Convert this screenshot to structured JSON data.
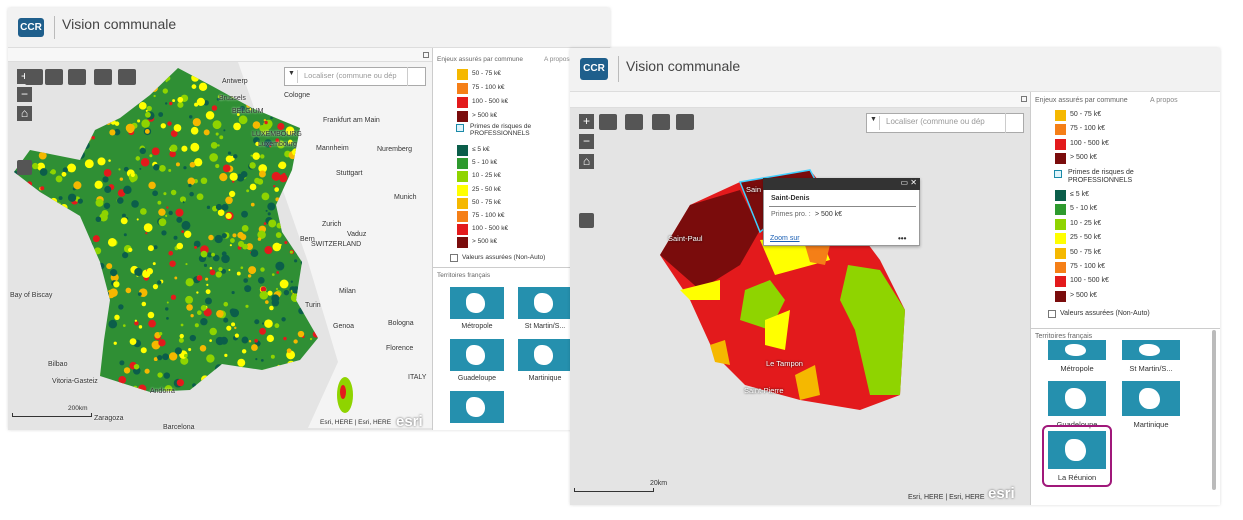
{
  "windows": [
    {
      "logo": "CCR",
      "title": "Vision communale",
      "search": "Localiser (commune ou dép",
      "legend": {
        "header": "Enjeux assurés par commune",
        "about": "A propos",
        "items": [
          {
            "label": "50 - 75 k€",
            "color": "#f5b800"
          },
          {
            "label": "75 - 100 k€",
            "color": "#f57f17"
          },
          {
            "label": "100 - 500 k€",
            "color": "#e31a1c"
          },
          {
            "label": "> 500 k€",
            "color": "#7a0c0c"
          }
        ],
        "layer": "Primes de risques de PROFESSIONNELS",
        "layer_items": [
          {
            "label": "≤ 5 k€",
            "color": "#0b5e4a"
          },
          {
            "label": "5 - 10 k€",
            "color": "#2e9a2e"
          },
          {
            "label": "10 - 25 k€",
            "color": "#8fd400"
          },
          {
            "label": "25 - 50 k€",
            "color": "#ffff00"
          },
          {
            "label": "50 - 75 k€",
            "color": "#f5b800"
          },
          {
            "label": "75 - 100 k€",
            "color": "#f57f17"
          },
          {
            "label": "100 - 500 k€",
            "color": "#e31a1c"
          },
          {
            "label": "> 500 k€",
            "color": "#7a0c0c"
          }
        ],
        "other_layer": "Valeurs assurées (Non-Auto)"
      },
      "territories": {
        "title": "Territoires français",
        "items": [
          "Métropole",
          "St Martin/S...",
          "Guadeloupe",
          "Martinique"
        ]
      },
      "map_labels": [
        "Antwerp",
        "Brussels",
        "BELGIUM",
        "Cologne",
        "Frankfurt am Main",
        "LUXEMBOURG",
        "Luxembourg",
        "Mannheim",
        "Nuremberg",
        "Stuttgart",
        "Munich",
        "Zurich",
        "Vaduz",
        "Bern",
        "SWITZERLAND",
        "Milan",
        "Turin",
        "Genoa",
        "Bologna",
        "Florence",
        "ITALY",
        "Bay of Biscay",
        "Bilbao",
        "Vitoria-Gasteiz",
        "Andorra",
        "Zaragoza",
        "Barcelona"
      ],
      "scale": "200km",
      "attribution": "Esri, HERE | Esri, HERE",
      "brand": "esri"
    },
    {
      "logo": "CCR",
      "title": "Vision communale",
      "search": "Localiser (commune ou dép",
      "legend": {
        "header": "Enjeux assurés par commune",
        "about": "A propos",
        "items": [
          {
            "label": "50 - 75 k€",
            "color": "#f5b800"
          },
          {
            "label": "75 - 100 k€",
            "color": "#f57f17"
          },
          {
            "label": "100 - 500 k€",
            "color": "#e31a1c"
          },
          {
            "label": "> 500 k€",
            "color": "#7a0c0c"
          }
        ],
        "layer": "Primes de risques de PROFESSIONNELS",
        "layer_items": [
          {
            "label": "≤ 5 k€",
            "color": "#0b5e4a"
          },
          {
            "label": "5 - 10 k€",
            "color": "#2e9a2e"
          },
          {
            "label": "10 - 25 k€",
            "color": "#8fd400"
          },
          {
            "label": "25 - 50 k€",
            "color": "#ffff00"
          },
          {
            "label": "50 - 75 k€",
            "color": "#f5b800"
          },
          {
            "label": "75 - 100 k€",
            "color": "#f57f17"
          },
          {
            "label": "100 - 500 k€",
            "color": "#e31a1c"
          },
          {
            "label": "> 500 k€",
            "color": "#7a0c0c"
          }
        ],
        "other_layer": "Valeurs assurées (Non-Auto)"
      },
      "territories": {
        "title": "Territoires français",
        "items": [
          "Métropole",
          "St Martin/S...",
          "Guadeloupe",
          "Martinique",
          "La Réunion"
        ]
      },
      "map_labels": [
        "Sain",
        "Saint-Paul",
        "Le Tampon",
        "Saint-Pierre"
      ],
      "popup": {
        "title": "Saint-Denis",
        "field": "Primes pro. :",
        "value": "> 500 k€",
        "link": "Zoom sur"
      },
      "scale": "20km",
      "attribution": "Esri, HERE | Esri, HERE",
      "brand": "esri"
    }
  ]
}
